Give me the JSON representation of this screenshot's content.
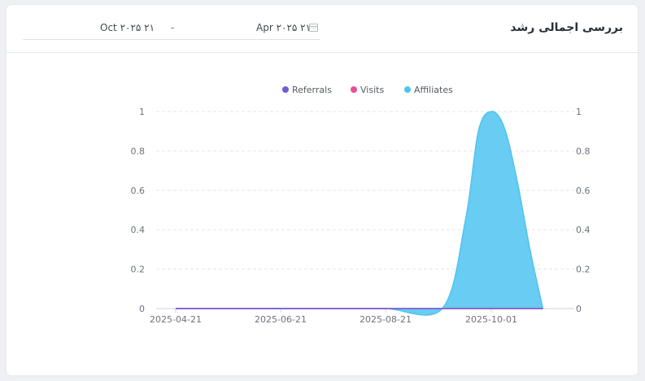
{
  "header": {
    "title": "بررسی اجمالی رشد",
    "date_start": "Oct ۲۰۲۵ ۲۱",
    "date_separator": "-",
    "date_end": "Apr ۲۰۲۵ ۲۱"
  },
  "chart_data": {
    "type": "area",
    "x_ticks": [
      "2025-04-21",
      "2025-06-21",
      "2025-08-21",
      "2025-10-01"
    ],
    "y_ticks": [
      "0",
      "0.2",
      "0.4",
      "0.6",
      "0.8",
      "1"
    ],
    "ylim": [
      0,
      1
    ],
    "grid": true,
    "legend_position": "top",
    "x": [
      "2025-04-21",
      "2025-05-21",
      "2025-06-21",
      "2025-07-21",
      "2025-08-21",
      "2025-09-12",
      "2025-09-21",
      "2025-09-26",
      "2025-10-01",
      "2025-10-06",
      "2025-10-11",
      "2025-10-16",
      "2025-10-21"
    ],
    "series": [
      {
        "name": "Referrals",
        "color": "#6c5fd6",
        "values": [
          0,
          0,
          0,
          0,
          0,
          0,
          0,
          0,
          0,
          0,
          0,
          0,
          0
        ]
      },
      {
        "name": "Visits",
        "color": "#e84f9a",
        "values": [
          0,
          0,
          0,
          0,
          0,
          0,
          0,
          0,
          0,
          0,
          0,
          0,
          0
        ]
      },
      {
        "name": "Affiliates",
        "color": "#4fc3f0",
        "values": [
          0,
          0,
          0,
          0,
          0,
          0,
          0.45,
          0.9,
          1,
          0.92,
          0.65,
          0.3,
          0
        ]
      }
    ]
  }
}
